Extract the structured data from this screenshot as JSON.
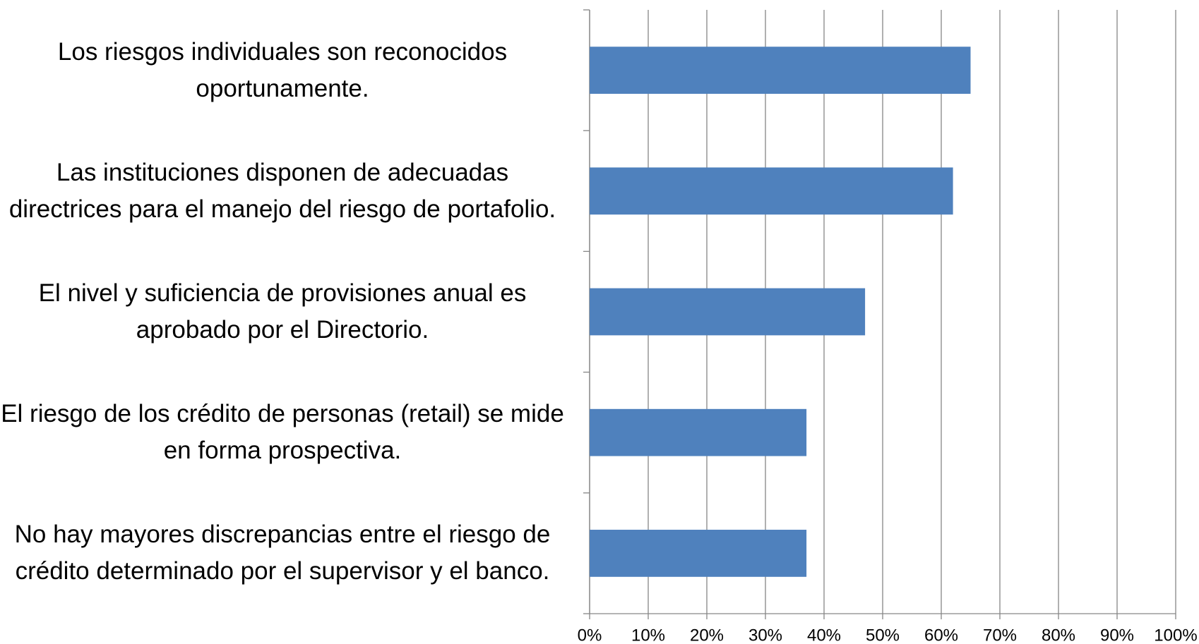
{
  "chart_data": {
    "type": "bar",
    "orientation": "horizontal",
    "categories": [
      "Los riesgos individuales son reconocidos oportunamente.",
      "Las instituciones disponen de adecuadas directrices para el manejo del riesgo de portafolio.",
      "El nivel y suficiencia de provisiones anual es aprobado por el Directorio.",
      "El riesgo de los crédito de personas (retail) se mide en forma prospectiva.",
      "No hay mayores discrepancias entre el riesgo de crédito determinado por el supervisor y el banco."
    ],
    "values": [
      65,
      62,
      47,
      37,
      37
    ],
    "color": "#4f81bd",
    "xlim": [
      0,
      100
    ],
    "xticks": [
      {
        "value": 0,
        "label": "0%"
      },
      {
        "value": 10,
        "label": "10%"
      },
      {
        "value": 20,
        "label": "20%"
      },
      {
        "value": 30,
        "label": "30%"
      },
      {
        "value": 40,
        "label": "40%"
      },
      {
        "value": 50,
        "label": "50%"
      },
      {
        "value": 60,
        "label": "60%"
      },
      {
        "value": 70,
        "label": "70%"
      },
      {
        "value": 80,
        "label": "80%"
      },
      {
        "value": 90,
        "label": "90%"
      },
      {
        "value": 100,
        "label": "100%"
      }
    ],
    "grid": true
  }
}
